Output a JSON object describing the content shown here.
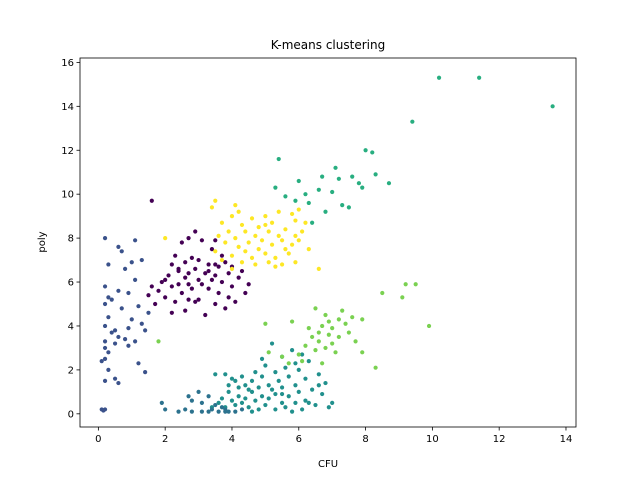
{
  "chart_data": {
    "type": "scatter",
    "title": "K-means clustering",
    "xlabel": "CFU",
    "ylabel": "poly",
    "xlim": [
      -0.55,
      14.3
    ],
    "ylim": [
      -0.6,
      16.2
    ],
    "xticks": [
      0,
      2,
      4,
      6,
      8,
      10,
      12,
      14
    ],
    "yticks": [
      0,
      2,
      4,
      6,
      8,
      10,
      12,
      14,
      16
    ],
    "grid": false,
    "legend": "none",
    "series": [
      {
        "color": "#440154",
        "points": [
          [
            1.6,
            9.7
          ],
          [
            2.9,
            8.3
          ],
          [
            2.7,
            8.0
          ],
          [
            3.1,
            7.9
          ],
          [
            3.5,
            7.9
          ],
          [
            2.5,
            7.8
          ],
          [
            3.4,
            7.5
          ],
          [
            2.3,
            7.2
          ],
          [
            2.8,
            7.1
          ],
          [
            3.0,
            7.0
          ],
          [
            2.6,
            6.9
          ],
          [
            3.8,
            6.9
          ],
          [
            2.2,
            6.8
          ],
          [
            3.3,
            6.8
          ],
          [
            3.6,
            6.7
          ],
          [
            4.0,
            6.7
          ],
          [
            2.9,
            6.6
          ],
          [
            2.4,
            6.5
          ],
          [
            2.7,
            6.4
          ],
          [
            3.2,
            6.4
          ],
          [
            3.9,
            6.4
          ],
          [
            4.3,
            6.5
          ],
          [
            2.1,
            6.3
          ],
          [
            3.5,
            6.3
          ],
          [
            2.0,
            6.1
          ],
          [
            2.6,
            6.2
          ],
          [
            3.0,
            6.1
          ],
          [
            3.4,
            6.1
          ],
          [
            4.2,
            6.2
          ],
          [
            1.9,
            6.0
          ],
          [
            2.4,
            5.9
          ],
          [
            3.1,
            5.9
          ],
          [
            3.7,
            6.0
          ],
          [
            4.5,
            5.9
          ],
          [
            2.2,
            5.8
          ],
          [
            2.8,
            5.7
          ],
          [
            3.3,
            5.7
          ],
          [
            4.0,
            5.8
          ],
          [
            1.8,
            5.6
          ],
          [
            2.5,
            5.5
          ],
          [
            3.6,
            5.5
          ],
          [
            4.4,
            5.5
          ],
          [
            2.0,
            5.3
          ],
          [
            2.7,
            5.2
          ],
          [
            3.0,
            5.2
          ],
          [
            3.9,
            5.3
          ],
          [
            4.1,
            5.1
          ],
          [
            1.7,
            5.0
          ],
          [
            2.3,
            5.1
          ],
          [
            2.9,
            5.1
          ],
          [
            3.5,
            5.0
          ],
          [
            3.8,
            4.8
          ],
          [
            2.6,
            4.7
          ],
          [
            2.2,
            4.6
          ],
          [
            3.2,
            4.5
          ],
          [
            1.6,
            5.8
          ],
          [
            1.5,
            5.4
          ],
          [
            2.4,
            6.6
          ],
          [
            3.7,
            7.2
          ],
          [
            3.3,
            6.5
          ],
          [
            2.7,
            5.9
          ],
          [
            3.5,
            6.8
          ]
        ]
      },
      {
        "color": "#3b528b",
        "points": [
          [
            0.2,
            8.0
          ],
          [
            1.1,
            7.9
          ],
          [
            0.6,
            7.6
          ],
          [
            0.7,
            7.4
          ],
          [
            1.3,
            7.0
          ],
          [
            0.3,
            6.8
          ],
          [
            0.8,
            6.6
          ],
          [
            1.1,
            6.1
          ],
          [
            0.2,
            5.8
          ],
          [
            0.6,
            5.6
          ],
          [
            0.9,
            5.5
          ],
          [
            0.3,
            5.3
          ],
          [
            0.2,
            5.0
          ],
          [
            1.2,
            4.9
          ],
          [
            0.7,
            4.8
          ],
          [
            1.5,
            4.6
          ],
          [
            0.3,
            4.4
          ],
          [
            1.0,
            4.3
          ],
          [
            1.3,
            4.1
          ],
          [
            0.2,
            4.0
          ],
          [
            0.9,
            3.9
          ],
          [
            1.4,
            3.8
          ],
          [
            0.4,
            3.7
          ],
          [
            0.6,
            3.5
          ],
          [
            0.8,
            3.4
          ],
          [
            0.2,
            3.3
          ],
          [
            1.1,
            3.3
          ],
          [
            0.5,
            3.2
          ],
          [
            0.9,
            3.1
          ],
          [
            0.2,
            3.0
          ],
          [
            0.3,
            2.8
          ],
          [
            0.2,
            2.5
          ],
          [
            0.1,
            2.4
          ],
          [
            1.2,
            2.3
          ],
          [
            0.3,
            2.0
          ],
          [
            1.4,
            1.9
          ],
          [
            0.2,
            1.5
          ],
          [
            0.5,
            1.6
          ],
          [
            0.6,
            1.4
          ],
          [
            0.1,
            0.2
          ],
          [
            0.2,
            0.2
          ],
          [
            0.15,
            0.15
          ],
          [
            0.4,
            5.2
          ],
          [
            1.0,
            6.9
          ],
          [
            0.5,
            3.8
          ]
        ]
      },
      {
        "color": "#21908d",
        "points": [
          [
            5.2,
            3.2
          ],
          [
            5.8,
            2.9
          ],
          [
            6.1,
            2.7
          ],
          [
            5.5,
            2.6
          ],
          [
            4.9,
            2.5
          ],
          [
            6.3,
            2.4
          ],
          [
            5.0,
            2.2
          ],
          [
            5.6,
            2.1
          ],
          [
            6.0,
            2.0
          ],
          [
            4.7,
            1.9
          ],
          [
            5.3,
            1.9
          ],
          [
            6.6,
            1.8
          ],
          [
            3.5,
            1.8
          ],
          [
            3.8,
            1.8
          ],
          [
            4.3,
            1.7
          ],
          [
            4.9,
            1.7
          ],
          [
            5.7,
            1.7
          ],
          [
            6.2,
            1.6
          ],
          [
            4.1,
            1.5
          ],
          [
            4.6,
            1.5
          ],
          [
            5.4,
            1.5
          ],
          [
            6.8,
            1.4
          ],
          [
            3.9,
            1.3
          ],
          [
            4.4,
            1.3
          ],
          [
            5.1,
            1.3
          ],
          [
            5.9,
            1.3
          ],
          [
            4.2,
            1.2
          ],
          [
            4.8,
            1.2
          ],
          [
            5.5,
            1.2
          ],
          [
            6.4,
            1.1
          ],
          [
            4.5,
            1.1
          ],
          [
            5.2,
            1.1
          ],
          [
            6.0,
            1.0
          ],
          [
            3.9,
            1.0
          ],
          [
            4.6,
            1.0
          ],
          [
            5.3,
            0.9
          ],
          [
            6.7,
            0.9
          ],
          [
            4.2,
            0.8
          ],
          [
            4.9,
            0.8
          ],
          [
            5.7,
            0.8
          ],
          [
            3.7,
            0.7
          ],
          [
            4.4,
            0.7
          ],
          [
            5.1,
            0.7
          ],
          [
            6.2,
            0.6
          ],
          [
            4.0,
            0.6
          ],
          [
            4.7,
            0.6
          ],
          [
            5.5,
            0.5
          ],
          [
            3.6,
            0.5
          ],
          [
            4.3,
            0.5
          ],
          [
            5.9,
            0.5
          ],
          [
            6.5,
            0.4
          ],
          [
            4.1,
            0.4
          ],
          [
            5.0,
            0.4
          ],
          [
            6.9,
            0.3
          ],
          [
            3.4,
            0.3
          ],
          [
            4.5,
            0.3
          ],
          [
            5.6,
            0.3
          ],
          [
            3.8,
            0.3
          ],
          [
            4.8,
            0.2
          ],
          [
            5.3,
            0.2
          ],
          [
            6.1,
            0.2
          ],
          [
            6.3,
            0.5
          ],
          [
            5.8,
            0.1
          ],
          [
            4.6,
            0.1
          ],
          [
            7.0,
            0.5
          ],
          [
            6.6,
            1.3
          ],
          [
            5.9,
            2.3
          ],
          [
            5.5,
            0.9
          ],
          [
            4.0,
            1.6
          ]
        ]
      },
      {
        "color": "#2c728e",
        "points": [
          [
            1.9,
            0.5
          ],
          [
            2.8,
            0.6
          ],
          [
            3.1,
            0.5
          ],
          [
            3.4,
            0.2
          ],
          [
            2.0,
            0.2
          ],
          [
            2.4,
            0.1
          ],
          [
            2.8,
            0.1
          ],
          [
            3.1,
            0.1
          ],
          [
            3.3,
            0.1
          ],
          [
            3.6,
            0.1
          ],
          [
            3.8,
            0.2
          ],
          [
            3.5,
            0.4
          ],
          [
            3.7,
            0.3
          ],
          [
            3.9,
            0.1
          ],
          [
            4.1,
            0.1
          ],
          [
            4.3,
            0.2
          ],
          [
            2.7,
            0.8
          ],
          [
            3.0,
            1.0
          ],
          [
            3.3,
            0.8
          ],
          [
            3.8,
            0.1
          ],
          [
            2.6,
            0.2
          ]
        ]
      },
      {
        "color": "#28ae80",
        "points": [
          [
            10.2,
            15.3
          ],
          [
            11.4,
            15.3
          ],
          [
            9.4,
            13.3
          ],
          [
            8.0,
            12.0
          ],
          [
            8.2,
            11.9
          ],
          [
            5.4,
            11.6
          ],
          [
            7.1,
            11.2
          ],
          [
            6.7,
            10.8
          ],
          [
            7.6,
            10.8
          ],
          [
            8.3,
            10.9
          ],
          [
            6.0,
            10.6
          ],
          [
            7.2,
            10.7
          ],
          [
            7.8,
            10.5
          ],
          [
            8.7,
            10.5
          ],
          [
            5.3,
            10.3
          ],
          [
            6.6,
            10.2
          ],
          [
            7.9,
            10.3
          ],
          [
            6.2,
            10.0
          ],
          [
            7.0,
            10.1
          ],
          [
            5.6,
            9.9
          ],
          [
            5.9,
            9.7
          ],
          [
            6.3,
            9.6
          ],
          [
            7.3,
            9.5
          ],
          [
            6.8,
            9.2
          ],
          [
            7.5,
            9.4
          ],
          [
            6.4,
            8.7
          ],
          [
            13.6,
            14.0
          ]
        ]
      },
      {
        "color": "#7ad151",
        "points": [
          [
            8.5,
            5.5
          ],
          [
            9.2,
            5.9
          ],
          [
            9.5,
            5.9
          ],
          [
            9.1,
            5.3
          ],
          [
            7.3,
            4.7
          ],
          [
            7.6,
            4.4
          ],
          [
            7.9,
            4.3
          ],
          [
            6.8,
            4.5
          ],
          [
            7.2,
            4.3
          ],
          [
            6.5,
            4.8
          ],
          [
            6.9,
            4.2
          ],
          [
            7.4,
            4.1
          ],
          [
            6.7,
            4.0
          ],
          [
            7.0,
            3.9
          ],
          [
            6.3,
            3.9
          ],
          [
            6.6,
            3.7
          ],
          [
            7.5,
            3.7
          ],
          [
            6.9,
            3.6
          ],
          [
            6.4,
            3.5
          ],
          [
            7.2,
            3.5
          ],
          [
            6.6,
            3.3
          ],
          [
            7.0,
            3.2
          ],
          [
            6.2,
            3.1
          ],
          [
            7.7,
            3.3
          ],
          [
            6.8,
            3.0
          ],
          [
            6.5,
            2.9
          ],
          [
            7.1,
            2.8
          ],
          [
            6.0,
            2.7
          ],
          [
            7.9,
            2.8
          ],
          [
            5.5,
            2.6
          ],
          [
            6.1,
            2.4
          ],
          [
            5.7,
            2.3
          ],
          [
            8.3,
            2.1
          ],
          [
            6.7,
            2.3
          ],
          [
            5.0,
            4.1
          ],
          [
            5.8,
            4.2
          ],
          [
            9.9,
            4.0
          ],
          [
            1.8,
            3.3
          ],
          [
            5.1,
            2.8
          ]
        ]
      },
      {
        "color": "#fde725",
        "points": [
          [
            3.5,
            9.7
          ],
          [
            3.4,
            9.4
          ],
          [
            4.2,
            9.2
          ],
          [
            5.4,
            9.2
          ],
          [
            5.8,
            9.1
          ],
          [
            6.0,
            9.3
          ],
          [
            4.0,
            9.0
          ],
          [
            5.0,
            9.0
          ],
          [
            4.6,
            8.9
          ],
          [
            5.9,
            8.8
          ],
          [
            3.7,
            8.7
          ],
          [
            4.3,
            8.6
          ],
          [
            5.2,
            8.7
          ],
          [
            6.2,
            8.7
          ],
          [
            4.8,
            8.5
          ],
          [
            5.6,
            8.4
          ],
          [
            3.9,
            8.3
          ],
          [
            4.4,
            8.3
          ],
          [
            5.1,
            8.3
          ],
          [
            6.1,
            8.3
          ],
          [
            3.6,
            8.1
          ],
          [
            4.7,
            8.1
          ],
          [
            5.4,
            8.1
          ],
          [
            5.9,
            8.1
          ],
          [
            4.1,
            8.0
          ],
          [
            4.9,
            7.9
          ],
          [
            5.5,
            7.9
          ],
          [
            6.0,
            7.9
          ],
          [
            3.8,
            7.8
          ],
          [
            4.5,
            7.8
          ],
          [
            5.2,
            7.7
          ],
          [
            5.8,
            7.7
          ],
          [
            4.2,
            7.6
          ],
          [
            4.8,
            7.5
          ],
          [
            5.6,
            7.5
          ],
          [
            3.5,
            7.4
          ],
          [
            4.4,
            7.4
          ],
          [
            5.0,
            7.3
          ],
          [
            5.7,
            7.3
          ],
          [
            4.0,
            7.2
          ],
          [
            4.6,
            7.1
          ],
          [
            5.3,
            7.1
          ],
          [
            3.7,
            7.0
          ],
          [
            4.3,
            6.9
          ],
          [
            5.1,
            6.9
          ],
          [
            5.9,
            6.9
          ],
          [
            4.7,
            6.8
          ],
          [
            5.5,
            6.8
          ],
          [
            4.0,
            6.6
          ],
          [
            5.3,
            6.7
          ],
          [
            2.0,
            8.0
          ],
          [
            6.6,
            6.6
          ],
          [
            6.3,
            7.5
          ],
          [
            4.1,
            9.5
          ],
          [
            5.0,
            8.6
          ]
        ]
      }
    ]
  }
}
